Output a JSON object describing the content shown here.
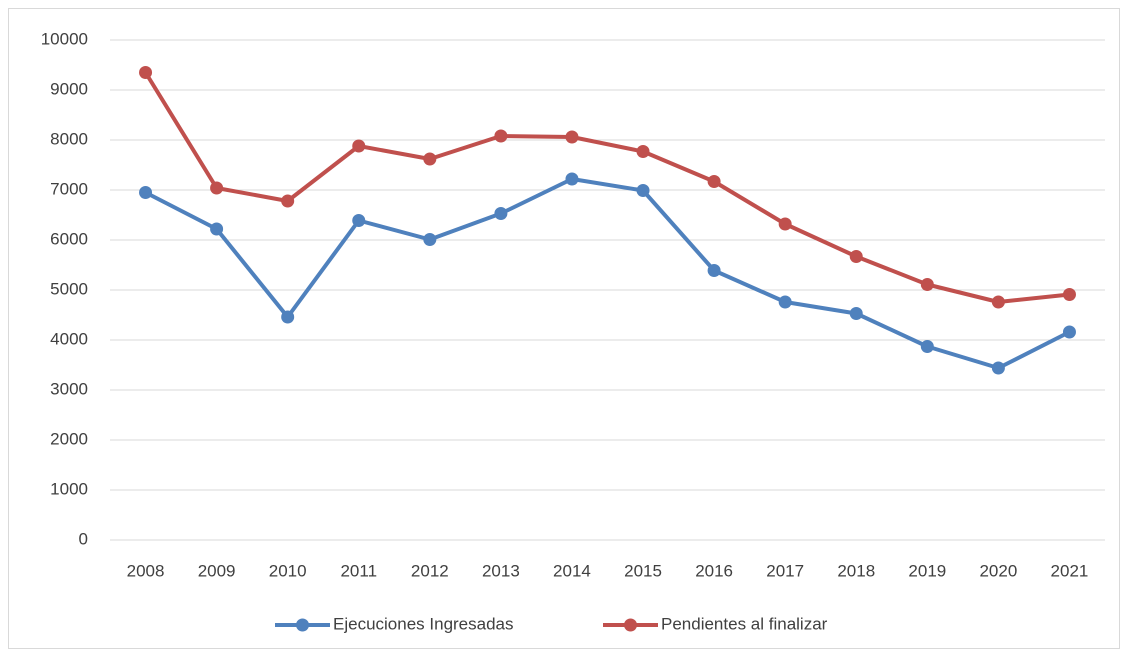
{
  "chart_data": {
    "type": "line",
    "categories": [
      "2008",
      "2009",
      "2010",
      "2011",
      "2012",
      "2013",
      "2014",
      "2015",
      "2016",
      "2017",
      "2018",
      "2019",
      "2020",
      "2021"
    ],
    "series": [
      {
        "name": "Ejecuciones Ingresadas",
        "color": "#4f81bd",
        "values": [
          6950,
          6220,
          4460,
          6390,
          6010,
          6530,
          7220,
          6990,
          5390,
          4760,
          4530,
          3870,
          3440,
          4160
        ]
      },
      {
        "name": "Pendientes al finalizar",
        "color": "#c0504d",
        "values": [
          9350,
          7040,
          6780,
          7880,
          7620,
          8080,
          8060,
          7770,
          7170,
          6320,
          5670,
          5110,
          4760,
          4910
        ]
      }
    ],
    "ylim": [
      0,
      10000
    ],
    "yticks": [
      0,
      1000,
      2000,
      3000,
      4000,
      5000,
      6000,
      7000,
      8000,
      9000,
      10000
    ],
    "grid": true,
    "legend": "bottom"
  }
}
